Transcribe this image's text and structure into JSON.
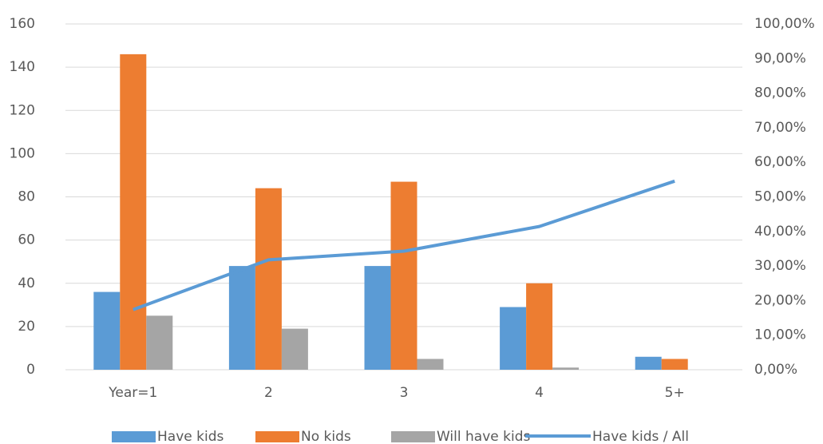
{
  "chart_data": {
    "type": "bar-line",
    "categories": [
      "Year=1",
      "2",
      "3",
      "4",
      "5+"
    ],
    "series": [
      {
        "name": "Have kids",
        "type": "bar",
        "color": "#5b9bd5",
        "values": [
          36,
          48,
          48,
          29,
          6
        ]
      },
      {
        "name": "No kids",
        "type": "bar",
        "color": "#ed7d31",
        "values": [
          146,
          84,
          87,
          40,
          5
        ]
      },
      {
        "name": "Will have kids",
        "type": "bar",
        "color": "#a5a5a5",
        "values": [
          25,
          19,
          5,
          1,
          0
        ]
      },
      {
        "name": "Have kids / All",
        "type": "line",
        "axis": "y2",
        "color": "#5b9bd5",
        "values": [
          17.39,
          31.79,
          34.29,
          41.43,
          54.55
        ]
      }
    ],
    "ylim": [
      0,
      160
    ],
    "yticks": [
      0,
      20,
      40,
      60,
      80,
      100,
      120,
      140,
      160
    ],
    "y2lim": [
      0,
      100
    ],
    "y2ticks": [
      {
        "value": 0,
        "label": "0,00%"
      },
      {
        "value": 10,
        "label": "10,00%"
      },
      {
        "value": 20,
        "label": "20,00%"
      },
      {
        "value": 30,
        "label": "30,00%"
      },
      {
        "value": 40,
        "label": "40,00%"
      },
      {
        "value": 50,
        "label": "50,00%"
      },
      {
        "value": 60,
        "label": "60,00%"
      },
      {
        "value": 70,
        "label": "70,00%"
      },
      {
        "value": 80,
        "label": "80,00%"
      },
      {
        "value": 90,
        "label": "90,00%"
      },
      {
        "value": 100,
        "label": "100,00%"
      }
    ],
    "grid": true,
    "legend": "bottom"
  }
}
